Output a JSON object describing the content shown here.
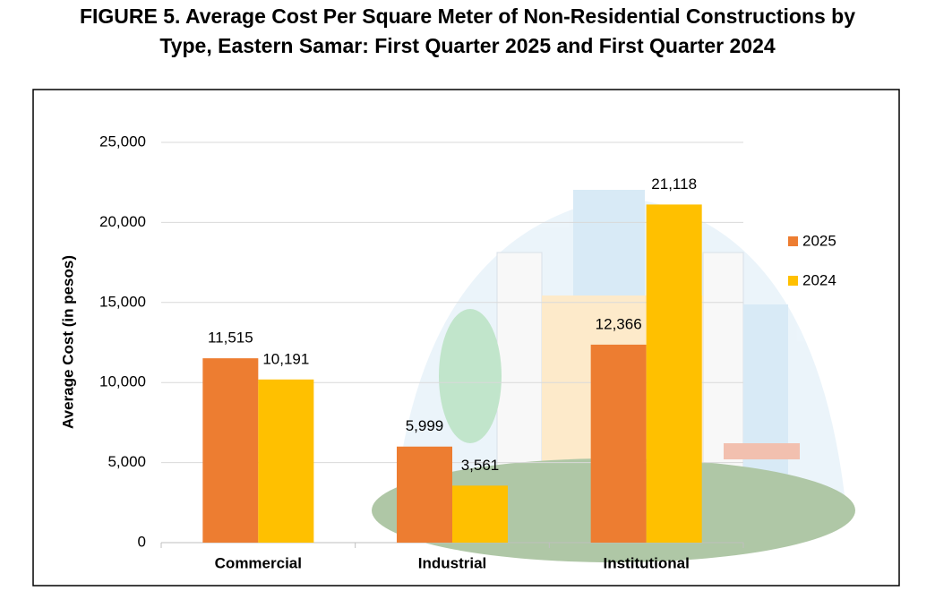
{
  "chart_data": {
    "type": "bar",
    "title": [
      "FIGURE 5. Average Cost Per Square Meter of Non-Residential Constructions by",
      "Type, Eastern Samar: First Quarter 2025 and First Quarter 2024"
    ],
    "y_axis_label": "Average Cost (in pesos)",
    "categories": [
      "Commercial",
      "Industrial",
      "Institutional"
    ],
    "series": [
      {
        "name": "2025",
        "color": "#ed7d31",
        "values": [
          11515,
          5999,
          12366
        ],
        "value_labels": [
          "11,515",
          "5,999",
          "12,366"
        ]
      },
      {
        "name": "2024",
        "color": "#ffc000",
        "values": [
          10191,
          3561,
          21118
        ],
        "value_labels": [
          "10,191",
          "3,561",
          "21,118"
        ]
      }
    ],
    "ylim": [
      0,
      25000
    ],
    "yticks": [
      0,
      {
        "value": 5000,
        "label": "5,000"
      },
      {
        "value": 10000,
        "label": "10,000"
      },
      {
        "value": 15000,
        "label": "15,000"
      },
      {
        "value": 20000,
        "label": "20,000"
      },
      {
        "value": 25000,
        "label": "25,000"
      }
    ],
    "grid": true,
    "legend": "right"
  }
}
